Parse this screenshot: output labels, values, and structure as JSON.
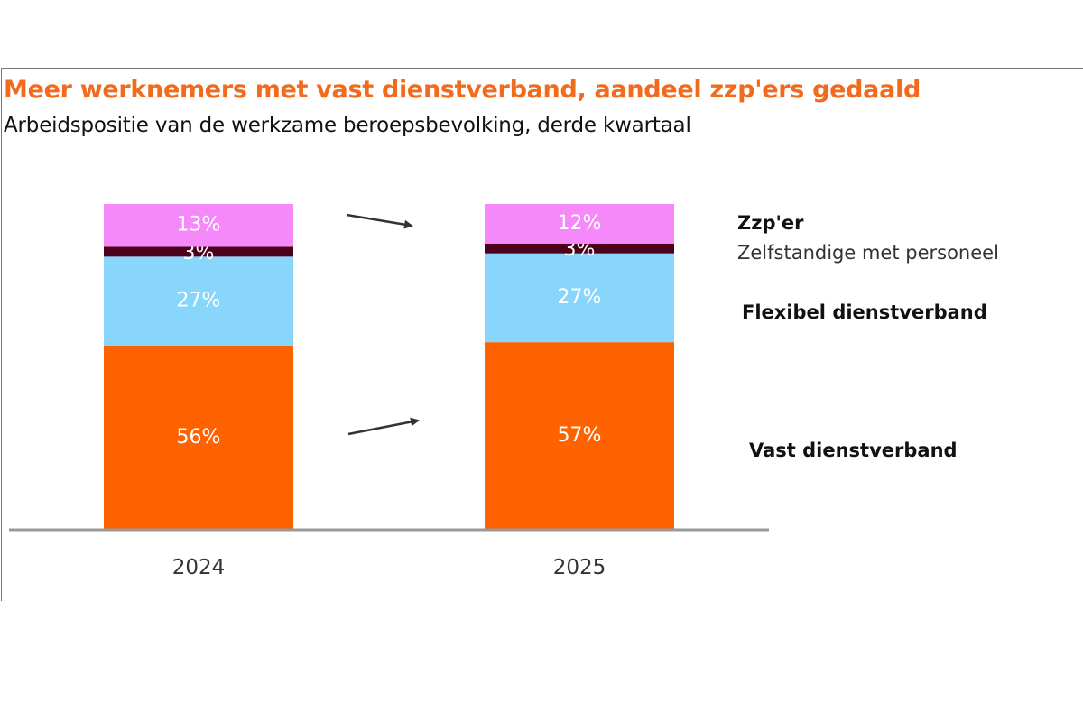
{
  "chart_data": {
    "type": "bar",
    "stacked": true,
    "title": "Meer werknemers met vast dienstverband, aandeel zzp'ers gedaald",
    "subtitle": "Arbeidspositie van de werkzame beroepsbevolking, derde kwartaal",
    "categories": [
      "2024",
      "2025"
    ],
    "series": [
      {
        "name": "Vast dienstverband",
        "values": [
          56,
          57
        ],
        "labels": [
          "56%",
          "57%"
        ],
        "color": "#FF6200"
      },
      {
        "name": "Flexibel dienstverband",
        "values": [
          27,
          27
        ],
        "labels": [
          "27%",
          "27%"
        ],
        "color": "#89D6FD"
      },
      {
        "name": "Zelfstandige met personeel",
        "values": [
          3,
          3
        ],
        "labels": [
          "3%",
          "3%"
        ],
        "color": "#4D0019"
      },
      {
        "name": "Zzp'er",
        "values": [
          13,
          12
        ],
        "labels": [
          "13%",
          "12%"
        ],
        "color": "#F589F9"
      }
    ],
    "ylim": [
      0,
      99
    ],
    "grid": false,
    "legend_placement": "right",
    "annotations": [
      "arrow-down-zzp",
      "arrow-up-vast"
    ]
  }
}
